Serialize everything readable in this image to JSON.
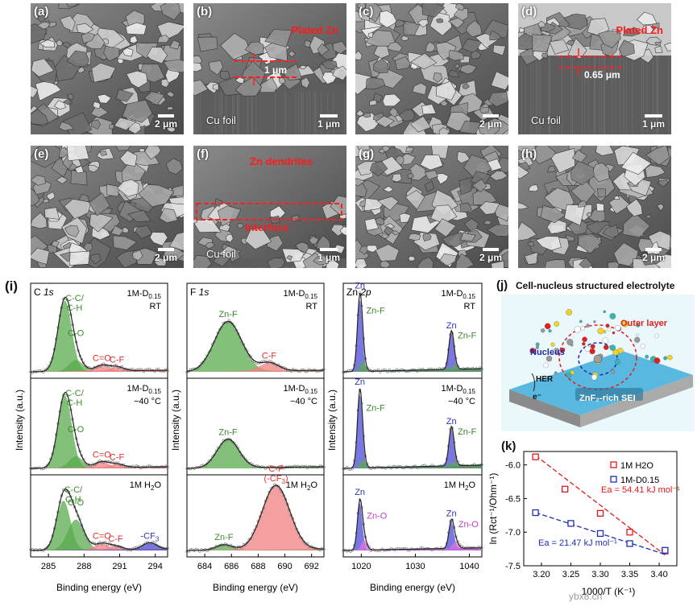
{
  "sem_panels": [
    {
      "label": "(a)",
      "scale": "2 μm"
    },
    {
      "label": "(b)",
      "scale": "1 μm",
      "title": "Plated Zn",
      "thickness": "1 μm",
      "substrate": "Cu foil"
    },
    {
      "label": "(c)",
      "scale": "2 μm"
    },
    {
      "label": "(d)",
      "scale": "1 μm",
      "title": "Plated Zn",
      "thickness": "0.65 μm",
      "substrate": "Cu foil"
    },
    {
      "label": "(e)",
      "scale": "2 μm"
    },
    {
      "label": "(f)",
      "scale": "1 μm",
      "title": "Zn dendrites",
      "interface": "Interface",
      "substrate": "Cu foil"
    },
    {
      "label": "(g)",
      "scale": "2 μm"
    },
    {
      "label": "(h)",
      "scale": "2 μm"
    }
  ],
  "xps": {
    "panel_label": "(i)",
    "y_axis_label": "Intensity (a.u.)",
    "x_axis_label": "Binding energy (eV)",
    "columns": [
      {
        "element": "C 1s",
        "ticks": [
          "285",
          "288",
          "291",
          "294"
        ],
        "rows": [
          {
            "sample": "1M-D0.15",
            "condition": "RT",
            "peaks": [
              "C-C/\nC-H",
              "C-O",
              "C=O",
              "C-F"
            ]
          },
          {
            "sample": "1M-D0.15",
            "condition": "−40 °C",
            "peaks": [
              "C-C/\nC-H",
              "C-O",
              "C=O",
              "C-F"
            ]
          },
          {
            "sample": "1M H2O",
            "condition": "",
            "peaks": [
              "C-C/\nC-H",
              "C-O",
              "C=O",
              "C-F",
              "-CF3"
            ]
          }
        ]
      },
      {
        "element": "F 1s",
        "ticks": [
          "684",
          "686",
          "688",
          "690",
          "692"
        ],
        "rows": [
          {
            "sample": "1M-D0.15",
            "condition": "RT",
            "peaks": [
              "Zn-F",
              "C-F"
            ]
          },
          {
            "sample": "1M-D0.15",
            "condition": "−40 °C",
            "peaks": [
              "Zn-F"
            ]
          },
          {
            "sample": "1M H2O",
            "condition": "",
            "peaks": [
              "Zn-F",
              "C-F\n(-CF3)"
            ]
          }
        ]
      },
      {
        "element": "Zn 2p",
        "ticks": [
          "1020",
          "1030",
          "1040"
        ],
        "rows": [
          {
            "sample": "1M-D0.15",
            "condition": "RT",
            "peaks": [
              "Zn",
              "Zn-F",
              "Zn",
              "Zn-F"
            ]
          },
          {
            "sample": "1M-D0.15",
            "condition": "−40 °C",
            "peaks": [
              "Zn",
              "Zn-F",
              "Zn",
              "Zn-F"
            ]
          },
          {
            "sample": "1M H2O",
            "condition": "",
            "peaks": [
              "Zn",
              "Zn-O",
              "Zn",
              "Zn-O"
            ]
          }
        ]
      }
    ]
  },
  "schematic": {
    "panel_label": "(j)",
    "title": "Cell-nucleus structured electrolyte",
    "outer_layer": "Outer layer",
    "nucleus": "Nucleus",
    "her": "HER",
    "electron": "e⁻",
    "sei": "ZnF₂-rich SEI"
  },
  "chart_data": {
    "type": "scatter",
    "panel_label": "(k)",
    "xlabel": "1000/T (K⁻¹)",
    "ylabel": "ln (Rct⁻¹/Ohm⁻¹)",
    "xlim": [
      3.17,
      3.43
    ],
    "ylim": [
      -7.5,
      -5.8
    ],
    "xticks": [
      3.2,
      3.25,
      3.3,
      3.35,
      3.4
    ],
    "yticks": [
      -6.0,
      -6.5,
      -7.0,
      -7.5
    ],
    "xtick_labels": [
      "3.20",
      "3.25",
      "3.30",
      "3.35",
      "3.40"
    ],
    "ytick_labels": [
      "-6.0",
      "-6.5",
      "-7.0",
      "-7.5"
    ],
    "series": [
      {
        "name": "1M H2O",
        "color": "#e31a1c",
        "x": [
          3.19,
          3.24,
          3.3,
          3.35,
          3.41
        ],
        "y": [
          -5.88,
          -6.36,
          -6.72,
          -7.0,
          -7.28
        ],
        "fit": [
          [
            3.19,
            -5.86
          ],
          [
            3.41,
            -7.34
          ]
        ],
        "ea_label": "Ea = 54.41 kJ mol⁻¹"
      },
      {
        "name": "1M-D0.15",
        "color": "#1f2fb4",
        "x": [
          3.19,
          3.25,
          3.3,
          3.35,
          3.41
        ],
        "y": [
          -6.71,
          -6.87,
          -7.02,
          -7.17,
          -7.27
        ],
        "fit": [
          [
            3.19,
            -6.71
          ],
          [
            3.41,
            -7.33
          ]
        ],
        "ea_label": "Ea = 21.47 kJ mol⁻¹"
      }
    ]
  },
  "watermark": "ybx8.cn",
  "colors": {
    "green_peak": "#5aab4e",
    "red_peak": "#f08080",
    "blue_peak": "#4b4bd6",
    "magenta_peak": "#e070e0",
    "peak_text_green": "#3a8a2a",
    "peak_text_red": "#e03030",
    "peak_text_blue": "#3030c0"
  }
}
